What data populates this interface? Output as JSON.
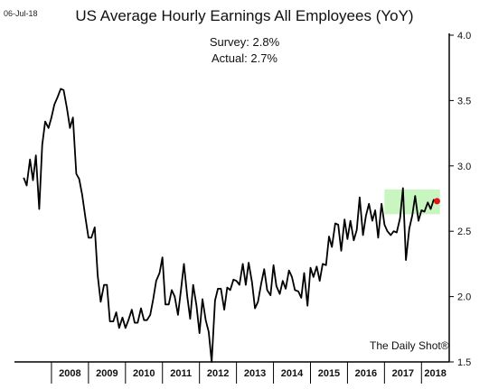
{
  "header": {
    "date": "06-Jul-18",
    "title": "US Average Hourly Earnings All Employees (YoY)",
    "survey": "Survey: 2.8%",
    "actual": "Actual:  2.7%",
    "brand": "The Daily Shot®"
  },
  "colors": {
    "line": "#000000",
    "highlight_box": "#c8f5c0",
    "marker": "#e01414",
    "axis": "#000000"
  },
  "chart_data": {
    "type": "line",
    "title": "US Average Hourly Earnings All Employees (YoY)",
    "xlabel": "",
    "ylabel": "",
    "ylim": [
      1.5,
      4.0
    ],
    "yticks": [
      "1.5",
      "2.0",
      "2.5",
      "3.0",
      "3.5",
      "4.0"
    ],
    "xticks": [
      "2008",
      "2009",
      "2010",
      "2011",
      "2012",
      "2013",
      "2014",
      "2015",
      "2016",
      "2017",
      "2018"
    ],
    "grid": false,
    "highlight": {
      "label": "survey range",
      "x_start": 2017.0,
      "x_end": 2018.5,
      "y_low": 2.63,
      "y_high": 2.82
    },
    "marker": {
      "x": 2018.42,
      "y": 2.73
    },
    "series": [
      {
        "values": [
          [
            2007.25,
            2.91
          ],
          [
            2007.33,
            2.85
          ],
          [
            2007.42,
            3.05
          ],
          [
            2007.5,
            2.89
          ],
          [
            2007.58,
            3.08
          ],
          [
            2007.67,
            2.67
          ],
          [
            2007.75,
            3.16
          ],
          [
            2007.83,
            3.34
          ],
          [
            2007.92,
            3.29
          ],
          [
            2008.0,
            3.37
          ],
          [
            2008.08,
            3.47
          ],
          [
            2008.17,
            3.53
          ],
          [
            2008.25,
            3.59
          ],
          [
            2008.33,
            3.58
          ],
          [
            2008.42,
            3.44
          ],
          [
            2008.5,
            3.29
          ],
          [
            2008.58,
            3.37
          ],
          [
            2008.67,
            2.94
          ],
          [
            2008.75,
            2.9
          ],
          [
            2008.83,
            2.78
          ],
          [
            2008.92,
            2.6
          ],
          [
            2009.0,
            2.45
          ],
          [
            2009.08,
            2.45
          ],
          [
            2009.17,
            2.53
          ],
          [
            2009.25,
            2.16
          ],
          [
            2009.33,
            1.96
          ],
          [
            2009.42,
            2.09
          ],
          [
            2009.5,
            2.09
          ],
          [
            2009.58,
            1.81
          ],
          [
            2009.67,
            1.81
          ],
          [
            2009.75,
            1.88
          ],
          [
            2009.83,
            1.76
          ],
          [
            2009.92,
            1.84
          ],
          [
            2010.0,
            1.76
          ],
          [
            2010.08,
            1.82
          ],
          [
            2010.17,
            1.9
          ],
          [
            2010.25,
            1.8
          ],
          [
            2010.33,
            1.8
          ],
          [
            2010.42,
            1.91
          ],
          [
            2010.5,
            1.82
          ],
          [
            2010.58,
            1.82
          ],
          [
            2010.67,
            1.86
          ],
          [
            2010.75,
            1.98
          ],
          [
            2010.83,
            2.12
          ],
          [
            2010.92,
            2.18
          ],
          [
            2011.0,
            2.3
          ],
          [
            2011.08,
            1.94
          ],
          [
            2011.17,
            1.94
          ],
          [
            2011.25,
            2.05
          ],
          [
            2011.33,
            2.0
          ],
          [
            2011.42,
            1.86
          ],
          [
            2011.5,
            2.05
          ],
          [
            2011.58,
            2.25
          ],
          [
            2011.67,
            2.0
          ],
          [
            2011.75,
            1.83
          ],
          [
            2011.83,
            2.09
          ],
          [
            2011.92,
            1.93
          ],
          [
            2012.0,
            1.72
          ],
          [
            2012.08,
            1.98
          ],
          [
            2012.17,
            1.82
          ],
          [
            2012.25,
            1.73
          ],
          [
            2012.33,
            1.5
          ],
          [
            2012.42,
            1.97
          ],
          [
            2012.5,
            2.06
          ],
          [
            2012.58,
            2.06
          ],
          [
            2012.67,
            1.9
          ],
          [
            2012.75,
            2.07
          ],
          [
            2012.83,
            2.05
          ],
          [
            2012.92,
            2.13
          ],
          [
            2013.0,
            2.12
          ],
          [
            2013.08,
            2.09
          ],
          [
            2013.17,
            2.25
          ],
          [
            2013.25,
            2.09
          ],
          [
            2013.33,
            2.26
          ],
          [
            2013.42,
            2.11
          ],
          [
            2013.5,
            1.91
          ],
          [
            2013.58,
            1.96
          ],
          [
            2013.67,
            2.1
          ],
          [
            2013.75,
            2.21
          ],
          [
            2013.83,
            2.05
          ],
          [
            2013.92,
            2.01
          ],
          [
            2014.0,
            2.24
          ],
          [
            2014.08,
            2.08
          ],
          [
            2014.17,
            2.02
          ],
          [
            2014.25,
            2.12
          ],
          [
            2014.33,
            2.06
          ],
          [
            2014.42,
            2.2
          ],
          [
            2014.5,
            2.15
          ],
          [
            2014.58,
            2.05
          ],
          [
            2014.67,
            2.04
          ],
          [
            2014.75,
            1.99
          ],
          [
            2014.83,
            2.18
          ],
          [
            2014.92,
            1.93
          ],
          [
            2015.0,
            2.22
          ],
          [
            2015.08,
            2.15
          ],
          [
            2015.17,
            2.23
          ],
          [
            2015.25,
            2.12
          ],
          [
            2015.33,
            2.25
          ],
          [
            2015.42,
            2.24
          ],
          [
            2015.5,
            2.46
          ],
          [
            2015.58,
            2.38
          ],
          [
            2015.67,
            2.56
          ],
          [
            2015.75,
            2.55
          ],
          [
            2015.83,
            2.35
          ],
          [
            2015.92,
            2.59
          ],
          [
            2016.0,
            2.44
          ],
          [
            2016.08,
            2.58
          ],
          [
            2016.17,
            2.43
          ],
          [
            2016.25,
            2.51
          ],
          [
            2016.33,
            2.76
          ],
          [
            2016.42,
            2.47
          ],
          [
            2016.5,
            2.62
          ],
          [
            2016.58,
            2.71
          ],
          [
            2016.67,
            2.58
          ],
          [
            2016.75,
            2.66
          ],
          [
            2016.83,
            2.45
          ],
          [
            2016.92,
            2.71
          ],
          [
            2017.0,
            2.55
          ],
          [
            2017.08,
            2.5
          ],
          [
            2017.17,
            2.47
          ],
          [
            2017.25,
            2.5
          ],
          [
            2017.33,
            2.49
          ],
          [
            2017.42,
            2.6
          ],
          [
            2017.5,
            2.83
          ],
          [
            2017.58,
            2.28
          ],
          [
            2017.67,
            2.52
          ],
          [
            2017.75,
            2.62
          ],
          [
            2017.83,
            2.77
          ],
          [
            2017.92,
            2.58
          ],
          [
            2018.0,
            2.66
          ],
          [
            2018.08,
            2.65
          ],
          [
            2018.17,
            2.72
          ],
          [
            2018.25,
            2.67
          ],
          [
            2018.33,
            2.74
          ],
          [
            2018.42,
            2.73
          ]
        ]
      }
    ]
  }
}
